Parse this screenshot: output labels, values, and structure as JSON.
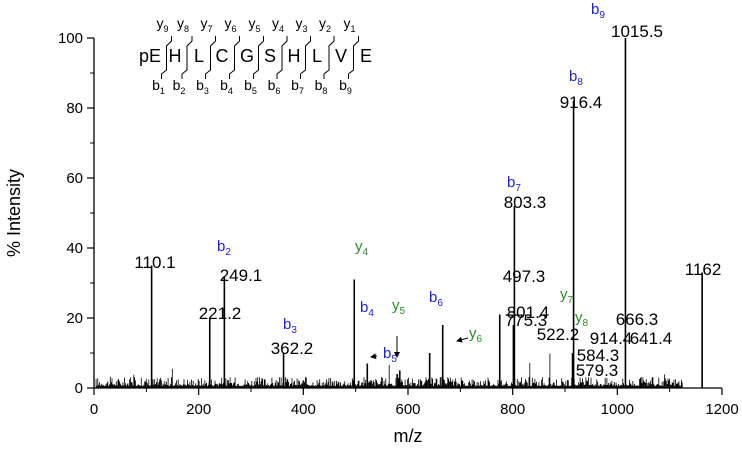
{
  "colors": {
    "b_ion": "#2020c8",
    "y_ion": "#2a8a2a",
    "axis": "#000000"
  },
  "chart_data": {
    "type": "bar",
    "title": "",
    "xlabel": "m/z",
    "ylabel": "% Intensity",
    "xlim": [
      0,
      1200
    ],
    "ylim": [
      0,
      100
    ],
    "x_ticks": [
      "0",
      "200",
      "400",
      "600",
      "800",
      "1000",
      "1200"
    ],
    "y_ticks": [
      "0",
      "20",
      "40",
      "60",
      "80",
      "100"
    ],
    "grid": false,
    "major_peaks": [
      {
        "mz": 110.1,
        "intensity": 35,
        "label": "110.1"
      },
      {
        "mz": 221.2,
        "intensity": 20,
        "label": "221.2"
      },
      {
        "mz": 249.1,
        "intensity": 32,
        "label": "249.1"
      },
      {
        "mz": 362.2,
        "intensity": 10,
        "label": "362.2"
      },
      {
        "mz": 497.3,
        "intensity": 31,
        "label": "497.3"
      },
      {
        "mz": 522.2,
        "intensity": 7,
        "label": "522.2"
      },
      {
        "mz": 579.3,
        "intensity": 4,
        "label": "579.3"
      },
      {
        "mz": 584.3,
        "intensity": 5,
        "label": "584.3"
      },
      {
        "mz": 641.4,
        "intensity": 10,
        "label": "641.4"
      },
      {
        "mz": 666.3,
        "intensity": 18,
        "label": "666.3"
      },
      {
        "mz": 775.3,
        "intensity": 21,
        "label": "775.3"
      },
      {
        "mz": 801.4,
        "intensity": 18,
        "label": "801.4"
      },
      {
        "mz": 803.3,
        "intensity": 52,
        "label": "803.3"
      },
      {
        "mz": 914.4,
        "intensity": 10,
        "label": "914.4"
      },
      {
        "mz": 916.4,
        "intensity": 82,
        "label": "916.4"
      },
      {
        "mz": 1015.5,
        "intensity": 100,
        "label": "1015.5"
      },
      {
        "mz": 1162,
        "intensity": 33,
        "label": "1162"
      }
    ],
    "ion_labels": [
      {
        "ion": "b",
        "number": "2",
        "series": "b"
      },
      {
        "ion": "b",
        "number": "3",
        "series": "b"
      },
      {
        "ion": "b",
        "number": "4",
        "series": "b"
      },
      {
        "ion": "b",
        "number": "5",
        "series": "b"
      },
      {
        "ion": "b",
        "number": "6",
        "series": "b"
      },
      {
        "ion": "b",
        "number": "7",
        "series": "b"
      },
      {
        "ion": "b",
        "number": "8",
        "series": "b"
      },
      {
        "ion": "b",
        "number": "9",
        "series": "b"
      },
      {
        "ion": "y",
        "number": "4",
        "series": "y"
      },
      {
        "ion": "y",
        "number": "5",
        "series": "y"
      },
      {
        "ion": "y",
        "number": "6",
        "series": "y"
      },
      {
        "ion": "y",
        "number": "7",
        "series": "y"
      },
      {
        "ion": "y",
        "number": "8",
        "series": "y"
      }
    ],
    "sequence": {
      "residues": [
        "pE",
        "H",
        "L",
        "C",
        "G",
        "S",
        "H",
        "L",
        "V",
        "E"
      ],
      "y_fragments": [
        "9",
        "8",
        "7",
        "6",
        "5",
        "4",
        "3",
        "2",
        "1"
      ],
      "b_fragments": [
        "1",
        "2",
        "3",
        "4",
        "5",
        "6",
        "7",
        "8",
        "9"
      ]
    }
  }
}
